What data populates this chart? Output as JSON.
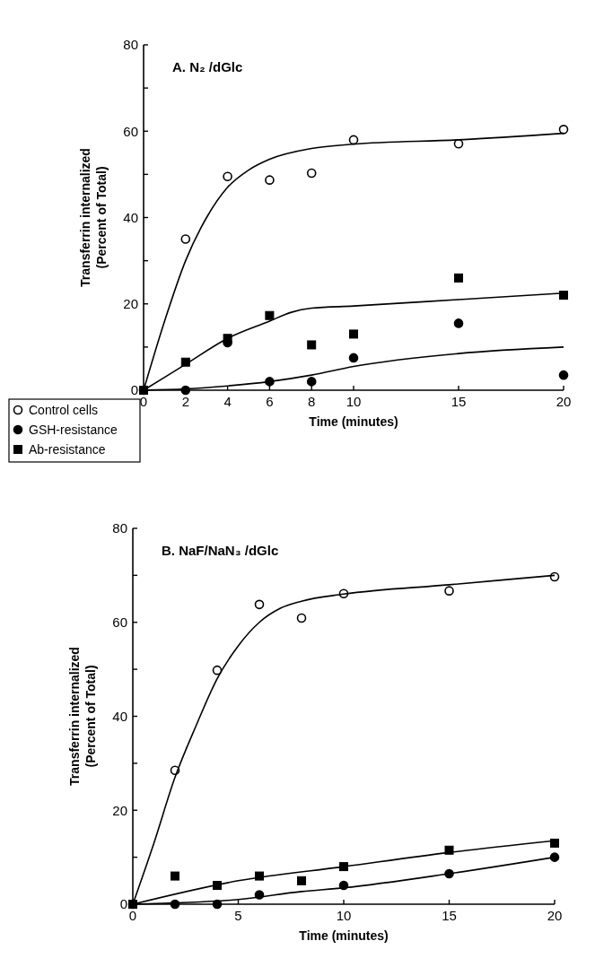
{
  "chart_data": [
    {
      "type": "scatter",
      "title": "A. N₂ /dGlc",
      "xlabel": "Time (minutes)",
      "ylabel": "Transferrin internalized\n(Percent of Total)",
      "xlim": [
        0,
        20
      ],
      "xticks": [
        0,
        2,
        4,
        6,
        8,
        10,
        15,
        20
      ],
      "ylim": [
        0,
        80
      ],
      "yticks": [
        0,
        {
          "value": 10,
          "label": null
        },
        20,
        {
          "value": 30,
          "label": null
        },
        40,
        {
          "value": 50,
          "label": null
        },
        60,
        {
          "value": 70,
          "label": null
        },
        80
      ],
      "legend": "bottom left",
      "grid": false,
      "series": [
        {
          "name": "Control cells",
          "marker": "circle",
          "color": "#000000",
          "x": [
            2,
            4,
            6,
            8,
            10,
            15,
            20
          ],
          "values": [
            35,
            49.5,
            48.7,
            50.3,
            58,
            57.1,
            60.4
          ]
        },
        {
          "name": "GSH-resistance",
          "marker": "circle",
          "color": "#000000",
          "x": [
            0,
            2,
            4,
            6,
            8,
            10,
            15,
            20
          ],
          "values": [
            0,
            0,
            11,
            2,
            2,
            7.5,
            15.5,
            3.5
          ]
        },
        {
          "name": "Ab-resistance",
          "marker": "square",
          "color": "#000000",
          "x": [
            0,
            2,
            4,
            8,
            10,
            15,
            20,
            6
          ],
          "values": [
            0,
            6.5,
            12,
            10.5,
            13,
            26,
            22,
            17.3
          ]
        },
        {
          "type": "line",
          "color": "#000000",
          "x": [
            0,
            1,
            2,
            3,
            4,
            5,
            6,
            8,
            10,
            15,
            20
          ],
          "values": [
            0,
            16,
            30,
            40,
            47,
            51,
            53.5,
            56,
            57,
            58,
            59.5
          ]
        },
        {
          "type": "line",
          "color": "#000000",
          "x": [
            0,
            2,
            4,
            6,
            7,
            8,
            10,
            15,
            20
          ],
          "values": [
            0,
            6,
            12,
            16,
            18,
            19,
            19.5,
            21,
            22.5
          ]
        },
        {
          "type": "line",
          "color": "#000000",
          "x": [
            0,
            2,
            4,
            6,
            8,
            10,
            15,
            20
          ],
          "values": [
            0,
            0.3,
            1,
            2,
            3.5,
            5.5,
            8.5,
            10
          ]
        }
      ]
    },
    {
      "type": "scatter",
      "title": "B. NaF/NaN₃ /dGlc",
      "xlabel": "Time (minutes)",
      "ylabel": "Transferrin internalized\n(Percent of Total)",
      "xlim": [
        0,
        20
      ],
      "xticks": [
        0,
        5,
        10,
        15,
        20
      ],
      "ylim": [
        0,
        80
      ],
      "yticks": [
        0,
        {
          "value": 10,
          "label": null
        },
        20,
        {
          "value": 30,
          "label": null
        },
        40,
        {
          "value": 50,
          "label": null
        },
        60,
        {
          "value": 70,
          "label": null
        },
        80
      ],
      "grid": false,
      "series": [
        {
          "marker": "circle",
          "color": "#000000",
          "x": [
            2,
            4,
            6,
            8,
            10,
            15,
            20
          ],
          "values": [
            28.5,
            49.8,
            63.8,
            60.9,
            66.1,
            66.7,
            69.7
          ]
        },
        {
          "marker": "circle",
          "color": "#000000",
          "x": [
            0,
            2,
            4,
            6,
            10,
            15,
            20
          ],
          "values": [
            0,
            0,
            0,
            2,
            4,
            6.5,
            10
          ]
        },
        {
          "marker": "square",
          "color": "#000000",
          "x": [
            0,
            2,
            4,
            6,
            8,
            10,
            15,
            20
          ],
          "values": [
            0,
            6,
            4,
            6,
            5,
            8,
            11.5,
            13
          ]
        },
        {
          "type": "line",
          "color": "#000000",
          "x": [
            0,
            1,
            2,
            3,
            4,
            5,
            6,
            7,
            8,
            10,
            15,
            20
          ],
          "values": [
            0,
            13,
            27,
            38,
            48,
            55,
            60,
            63,
            64.5,
            66,
            68,
            70
          ]
        },
        {
          "type": "line",
          "color": "#000000",
          "x": [
            0,
            5,
            10,
            15,
            20
          ],
          "values": [
            0,
            5,
            8,
            11,
            13.5
          ]
        },
        {
          "type": "line",
          "color": "#000000",
          "x": [
            0,
            5,
            8,
            10,
            15,
            20
          ],
          "values": [
            0,
            1,
            2.7,
            3.5,
            6.5,
            10
          ]
        }
      ]
    }
  ]
}
